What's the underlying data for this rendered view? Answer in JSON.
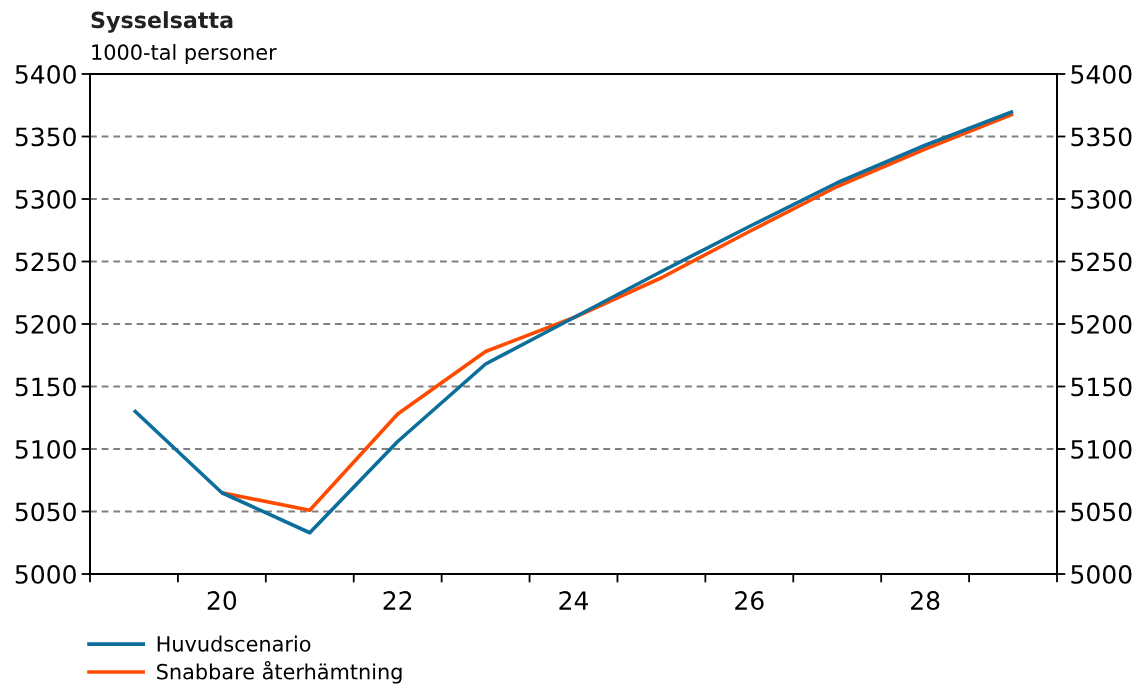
{
  "chart_data": {
    "type": "line",
    "title": "Sysselsatta",
    "subtitle": "1000-tal personer",
    "categories": [
      null,
      "20",
      null,
      "22",
      null,
      "24",
      null,
      "26",
      null,
      "28",
      null
    ],
    "series": [
      {
        "name": "Huvudscenario",
        "color": "#0b6e9b",
        "values": [
          5131,
          5065,
          5033,
          5106,
          5168,
          5205,
          5242,
          5278,
          5313,
          5343,
          5370
        ]
      },
      {
        "name": "Snabbare återhämtning",
        "color": "#ff4b00",
        "values": [
          null,
          5065,
          5051,
          5128,
          5178,
          5205,
          5237,
          5274,
          5310,
          5340,
          5368
        ]
      }
    ],
    "ylim": [
      5000,
      5400
    ],
    "yticks": [
      5000,
      5050,
      5100,
      5150,
      5200,
      5250,
      5300,
      5350,
      5400
    ],
    "y2lim": [
      5000,
      5400
    ],
    "y2ticks": [
      5000,
      5050,
      5100,
      5150,
      5200,
      5250,
      5300,
      5350,
      5400
    ],
    "grid": "y",
    "legend": "bottom left",
    "line_style": "solid"
  }
}
